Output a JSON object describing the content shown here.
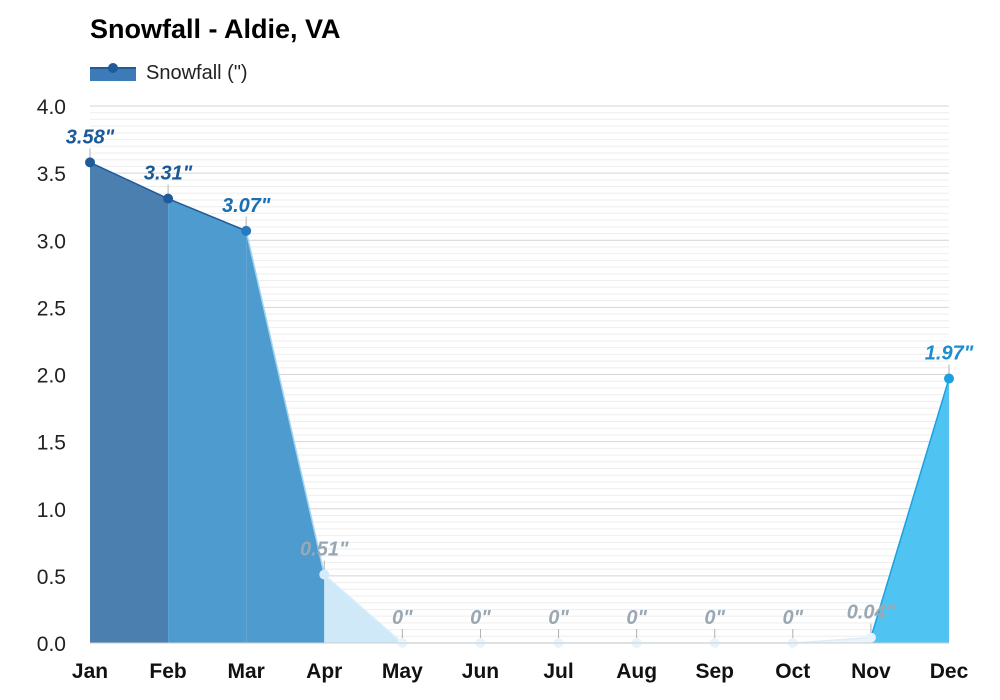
{
  "title": "Snowfall - Aldie, VA",
  "legend": {
    "label": "Snowfall (\")"
  },
  "chart_data": {
    "type": "area",
    "title": "Snowfall - Aldie, VA",
    "xlabel": "",
    "ylabel": "",
    "categories": [
      "Jan",
      "Feb",
      "Mar",
      "Apr",
      "May",
      "Jun",
      "Jul",
      "Aug",
      "Sep",
      "Oct",
      "Nov",
      "Dec"
    ],
    "series": [
      {
        "name": "Snowfall (\")",
        "values": [
          3.58,
          3.31,
          3.07,
          0.51,
          0,
          0,
          0,
          0,
          0,
          0,
          0.04,
          1.97
        ],
        "labels": [
          "3.58\"",
          "3.31\"",
          "3.07\"",
          "0.51\"",
          "0\"",
          "0\"",
          "0\"",
          "0\"",
          "0\"",
          "0\"",
          "0.04\"",
          "1.97\""
        ]
      }
    ],
    "ylim": [
      0,
      4.0
    ],
    "yticks": [
      "0.0",
      "0.5",
      "1.0",
      "1.5",
      "2.0",
      "2.5",
      "3.0",
      "3.5",
      "4.0"
    ],
    "grid": true,
    "legend_position": "top-left",
    "colors": {
      "Jan": "#4a7fb0",
      "Feb": "#4d9bcf",
      "Mar": "#4d9bcf",
      "Apr": "#cfe9f8",
      "May": "#eaf4fb",
      "Nov": "#eaf4fb",
      "Dec": "#4fc4f2",
      "label_dark": "#1a5a99",
      "label_mid": "#1a6fb0",
      "label_pale": "#9aa8b4",
      "label_bright": "#1a8fd0"
    }
  }
}
